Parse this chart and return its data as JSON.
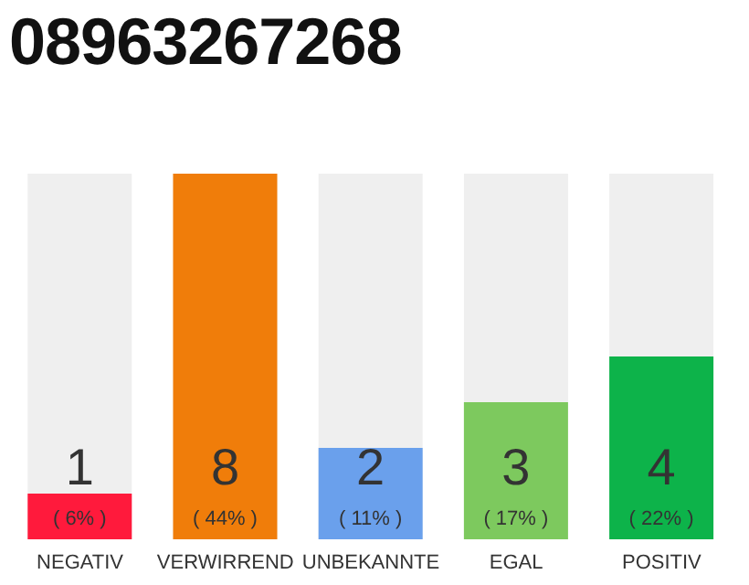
{
  "chart_data": {
    "type": "bar",
    "title": "08963267268",
    "categories": [
      "NEGATIV",
      "VERWIRREND",
      "UNBEKANNTE",
      "EGAL",
      "POSITIV"
    ],
    "values": [
      1,
      8,
      2,
      3,
      4
    ],
    "colors": [
      "#ff1a3c",
      "#f07d0a",
      "#6aa0ec",
      "#7dc95e",
      "#0db34a"
    ],
    "data_labels": true,
    "annotations": [
      "( 6% )",
      "( 44% )",
      "( 11% )",
      "( 17% )",
      "( 22% )"
    ],
    "grid": false,
    "legend": false
  }
}
